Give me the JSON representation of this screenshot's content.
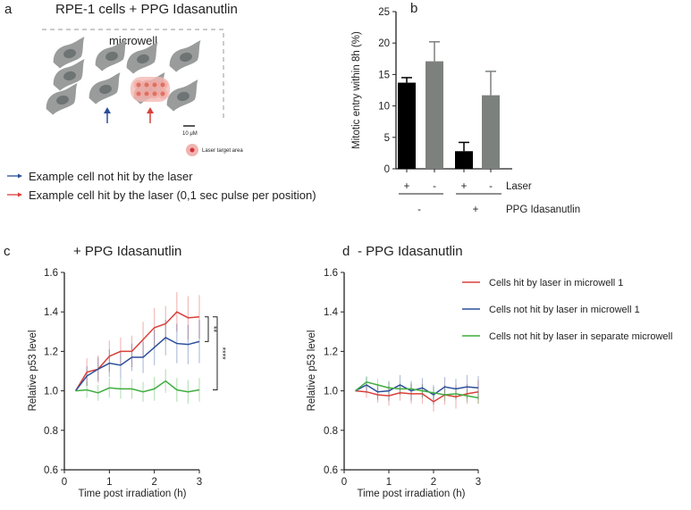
{
  "panel_a": {
    "letter": "a",
    "title": "RPE-1 cells + PPG Idasanutlin",
    "microwell_label": "microwell",
    "scale_bar_label": "10 μM",
    "laser_target_label": "Laser target area",
    "legend": [
      {
        "text": "Example cell not hit by the laser",
        "color": "#2b4f9a"
      },
      {
        "text": "Example cell hit by the laser (0,1 sec pulse per position)",
        "color": "#d9403a"
      }
    ],
    "cell_color": "#9a9c9c",
    "nucleus_color": "#6e7374"
  },
  "chart_data": [
    {
      "panel": "b",
      "type": "bar",
      "ylabel": "Mitotic entry within 8h (%)",
      "ylim": [
        0,
        25
      ],
      "yticks": [
        0,
        5,
        10,
        15,
        20,
        25
      ],
      "values": [
        13.7,
        17.1,
        2.8,
        11.7
      ],
      "errors": [
        0.8,
        3.1,
        1.4,
        3.8
      ],
      "colors": [
        "#000000",
        "#7d817d",
        "#000000",
        "#7d817d"
      ],
      "factors": [
        {
          "name": "Laser",
          "levels": [
            "+",
            "-",
            "+",
            "-"
          ]
        },
        {
          "name": "PPG Idasanutlin",
          "levels": [
            "-",
            "+"
          ]
        }
      ]
    },
    {
      "panel": "c",
      "type": "line",
      "title": "+ PPG Idasanutlin",
      "xlabel": "Time post irradiation (h)",
      "ylabel": "Relative p53 level",
      "xlim": [
        0,
        3
      ],
      "ylim": [
        0.6,
        1.6
      ],
      "xticks": [
        0,
        1,
        2,
        3
      ],
      "yticks": [
        "0.6",
        "0.8",
        "1.0",
        "1.2",
        "1.4",
        "1.6"
      ],
      "x": [
        0.25,
        0.5,
        0.75,
        1.0,
        1.25,
        1.5,
        1.75,
        2.0,
        2.25,
        2.5,
        2.75,
        3.0
      ],
      "series": [
        {
          "name": "Cells hit by laser in microwell 1",
          "color": "#d9403a",
          "values": [
            1.0,
            1.095,
            1.11,
            1.175,
            1.2,
            1.2,
            1.26,
            1.32,
            1.34,
            1.4,
            1.37,
            1.375
          ],
          "errors": [
            0,
            0.07,
            0.07,
            0.08,
            0.07,
            0.08,
            0.09,
            0.1,
            0.09,
            0.1,
            0.11,
            0.11
          ]
        },
        {
          "name": "Cells not hit by laser in microwell 1",
          "color": "#2b4f9a",
          "values": [
            1.0,
            1.075,
            1.11,
            1.14,
            1.13,
            1.17,
            1.17,
            1.22,
            1.27,
            1.24,
            1.235,
            1.25
          ],
          "errors": [
            0,
            0.05,
            0.06,
            0.07,
            0.07,
            0.07,
            0.08,
            0.09,
            0.09,
            0.1,
            0.1,
            0.11
          ]
        },
        {
          "name": "Cells not hit by laser in separate microwell",
          "color": "#3fae3f",
          "values": [
            1.0,
            1.005,
            0.99,
            1.015,
            1.01,
            1.01,
            0.995,
            1.01,
            1.05,
            1.005,
            0.995,
            1.005
          ],
          "errors": [
            0,
            0.04,
            0.04,
            0.05,
            0.05,
            0.05,
            0.05,
            0.06,
            0.06,
            0.06,
            0.06,
            0.06
          ]
        }
      ],
      "significance": [
        "**",
        "****"
      ]
    },
    {
      "panel": "d",
      "type": "line",
      "title": "- PPG Idasanutlin",
      "xlabel": "Time post irradiation (h)",
      "ylabel": "Relative p53 level",
      "xlim": [
        0,
        3
      ],
      "ylim": [
        0.6,
        1.6
      ],
      "xticks": [
        0,
        1,
        2,
        3
      ],
      "yticks": [
        "0.6",
        "0.8",
        "1.0",
        "1.2",
        "1.4",
        "1.6"
      ],
      "x": [
        0.25,
        0.5,
        0.75,
        1.0,
        1.25,
        1.5,
        1.75,
        2.0,
        2.25,
        2.5,
        2.75,
        3.0
      ],
      "legend_position": "top-right",
      "series": [
        {
          "name": "Cells hit by laser in microwell 1",
          "color": "#d9403a",
          "values": [
            1.0,
            0.995,
            0.98,
            0.975,
            0.99,
            0.985,
            0.985,
            0.945,
            0.98,
            0.97,
            0.985,
            0.995
          ],
          "errors": [
            0,
            0.03,
            0.04,
            0.05,
            0.04,
            0.05,
            0.05,
            0.05,
            0.05,
            0.06,
            0.05,
            0.06
          ]
        },
        {
          "name": "Cells not hit by laser in microwell 1",
          "color": "#2b4f9a",
          "values": [
            1.0,
            1.03,
            0.995,
            1.0,
            1.03,
            1.0,
            1.015,
            0.98,
            1.02,
            1.01,
            1.02,
            1.015
          ],
          "errors": [
            0,
            0.04,
            0.04,
            0.05,
            0.05,
            0.05,
            0.05,
            0.05,
            0.05,
            0.05,
            0.06,
            0.06
          ]
        },
        {
          "name": "Cells not hit by laser in separate microwell",
          "color": "#3fae3f",
          "values": [
            1.0,
            1.045,
            1.03,
            1.015,
            1.01,
            1.01,
            1.0,
            0.99,
            0.98,
            0.985,
            0.975,
            0.965
          ],
          "errors": [
            0,
            0.03,
            0.03,
            0.03,
            0.03,
            0.03,
            0.03,
            0.03,
            0.03,
            0.03,
            0.03,
            0.03
          ]
        }
      ]
    }
  ],
  "panel_letters": {
    "b": "b",
    "c": "c",
    "d": "d"
  }
}
